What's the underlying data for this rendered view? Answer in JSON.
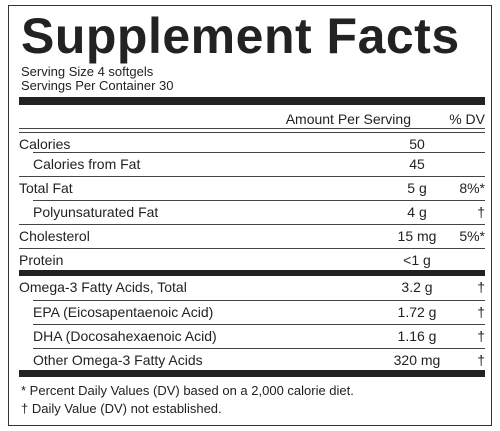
{
  "header": {
    "title": "Supplement Facts",
    "serving_size": "Serving Size 4 softgels",
    "servings_per_container": "Servings Per Container 30"
  },
  "table": {
    "columns": [
      "Amount Per Serving",
      "% DV"
    ],
    "rows": [
      [
        "Calories",
        "50"
      ],
      [
        "Calories from Fat",
        "45"
      ],
      [
        "Total Fat",
        "5 g",
        "8%*"
      ],
      [
        "Polyunsaturated Fat",
        "4 g",
        "†"
      ],
      [
        "Cholesterol",
        "15 mg",
        "5%*"
      ],
      [
        "Protein",
        "<1 g"
      ],
      [
        "Omega-3 Fatty Acids, Total",
        "3.2 g",
        "†"
      ],
      [
        "EPA (Eicosapentaenoic Acid)",
        "1.72 g",
        "†"
      ],
      [
        "DHA (Docosahexaenoic Acid)",
        "1.16 g",
        "†"
      ],
      [
        "Other Omega-3 Fatty Acids",
        "320 mg",
        "†"
      ]
    ]
  },
  "footnotes": [
    "* Percent Daily Values (DV) based on a 2,000 calorie diet.",
    "† Daily Value (DV) not established."
  ]
}
